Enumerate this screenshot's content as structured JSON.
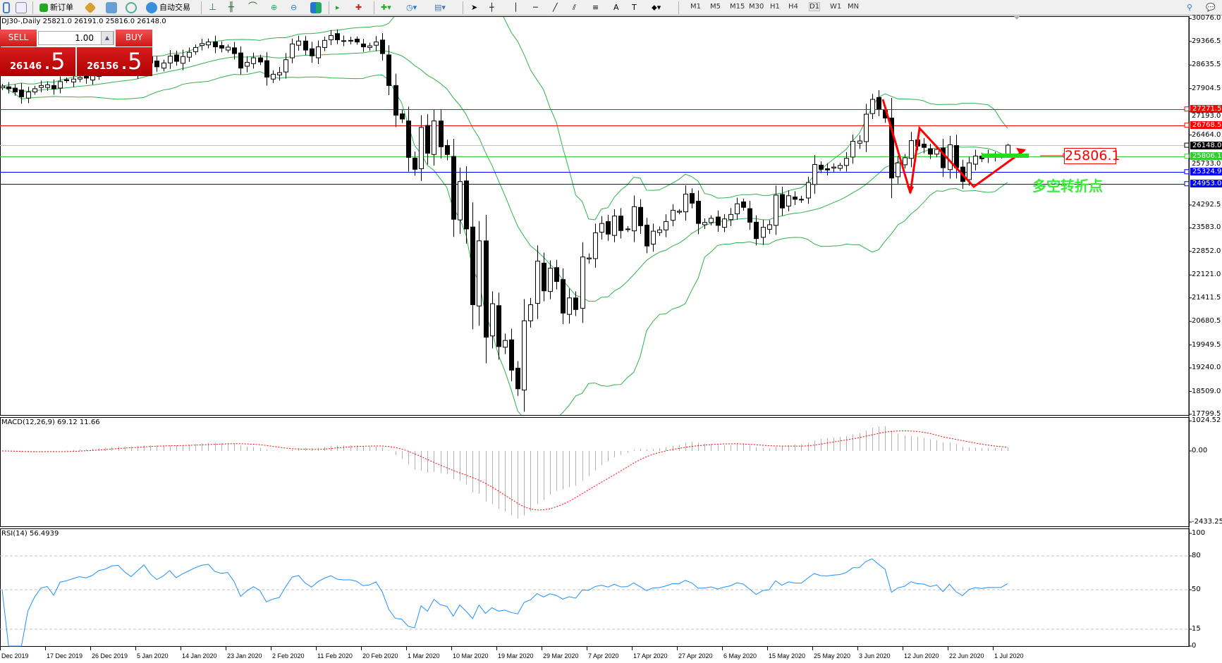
{
  "toolbar": {
    "new_order": "新订单",
    "auto_trading": "自动交易",
    "timeframes": [
      "M1",
      "M5",
      "M15",
      "M30",
      "H1",
      "H4",
      "D1",
      "W1",
      "MN"
    ],
    "active_timeframe": "D1"
  },
  "chart_title": "DJ30-,Daily  25821.0 26191.0 25816.0 26148.0",
  "trade_panel": {
    "sell": "SELL",
    "buy": "BUY",
    "lot": "1.00",
    "sell_price_main": "26146",
    "sell_price_frac": ".5",
    "buy_price_main": "26156",
    "buy_price_frac": ".5"
  },
  "price_axis": [
    "30076.0",
    "29366.5",
    "28635.5",
    "27904.5",
    "27193.0",
    "26464.0",
    "25733.0",
    "24292.5",
    "23583.0",
    "22852.0",
    "22121.0",
    "21411.5",
    "20680.5",
    "19949.5",
    "19240.0",
    "18509.0",
    "17799.5"
  ],
  "levels": [
    {
      "value": "27271.5",
      "color": "#ff0000"
    },
    {
      "value": "26768.5",
      "color": "#ff0000"
    },
    {
      "value": "26148.0",
      "color": "#000000",
      "line": "#c0c0c0"
    },
    {
      "value": "25806.1",
      "color": "#33cc33"
    },
    {
      "value": "25324.9",
      "color": "#0000ff"
    },
    {
      "value": "24953.0",
      "color": "#0000ff"
    }
  ],
  "annotation": {
    "price_box": "25806.1",
    "text": "多空转折点",
    "text_color": "#33ee33",
    "arrow_color": "#ff0000"
  },
  "macd": {
    "label": "MACD(12,26,9) 69.12 11.66",
    "axis": [
      "1024.52",
      "0.00",
      "-2433.25"
    ]
  },
  "rsi": {
    "label": "RSI(14) 56.4939",
    "axis": [
      "100",
      "80",
      "50",
      "15",
      "0"
    ]
  },
  "dates": [
    "Dec 2019",
    "17 Dec 2019",
    "26 Dec 2019",
    "5 Jan 2020",
    "14 Jan 2020",
    "23 Jan 2020",
    "2 Feb 2020",
    "11 Feb 2020",
    "20 Feb 2020",
    "1 Mar 2020",
    "10 Mar 2020",
    "19 Mar 2020",
    "29 Mar 2020",
    "7 Apr 2020",
    "17 Apr 2020",
    "27 Apr 2020",
    "6 May 2020",
    "15 May 2020",
    "25 May 2020",
    "3 Jun 2020",
    "12 Jun 2020",
    "22 Jun 2020",
    "1 Jul 2020"
  ],
  "closes": [
    27980,
    27900,
    27800,
    27650,
    27800,
    27900,
    28000,
    28020,
    27900,
    28120,
    28150,
    28200,
    28250,
    28230,
    28300,
    28450,
    28500,
    28620,
    28640,
    28540,
    28460,
    28640,
    28870,
    28700,
    28580,
    28700,
    28910,
    28750,
    28900,
    29030,
    29180,
    29300,
    29350,
    29200,
    29160,
    29190,
    28990,
    28540,
    28720,
    28860,
    28730,
    28260,
    28350,
    28400,
    28800,
    29290,
    29380,
    29100,
    28920,
    29200,
    29400,
    29550,
    29420,
    29390,
    29400,
    29350,
    29200,
    29230,
    29350,
    28990,
    28000,
    27080,
    26960,
    25770,
    25400,
    26700,
    25900,
    26900,
    26100,
    25860,
    23850,
    25020,
    23550,
    21200,
    23180,
    20190,
    21230,
    19900,
    20090,
    19170,
    18590,
    20700,
    21200,
    22550,
    21630,
    22330,
    21920,
    20940,
    21410,
    21050,
    22680,
    22650,
    23430,
    23720,
    23390,
    23950,
    23500,
    23550,
    24240,
    23650,
    23020,
    23480,
    23520,
    23780,
    24130,
    24100,
    24630,
    24350,
    23720,
    23750,
    23880,
    23660,
    23860,
    24000,
    24330,
    24220,
    23760,
    23250,
    23600,
    23680,
    24600,
    24200,
    24580,
    24470,
    24470,
    24990,
    25550,
    25400,
    25380,
    25470,
    25520,
    25740,
    26270,
    26280,
    27110,
    27570,
    27270,
    26990,
    25130,
    25600,
    25760,
    26290,
    26120,
    26080,
    25870,
    26020,
    25450,
    26160,
    25450,
    25020,
    25600,
    25810,
    25730,
    25830,
    25820,
    25821,
    26148
  ],
  "last_bar": {
    "open": 25821.0,
    "high": 26191.0,
    "low": 25816.0,
    "close": 26148.0
  },
  "colors": {
    "bollinger": "#2db34a",
    "macd_hist": "#b0b0b0",
    "macd_signal": "#ff0000",
    "rsi": "#1e90ff"
  }
}
